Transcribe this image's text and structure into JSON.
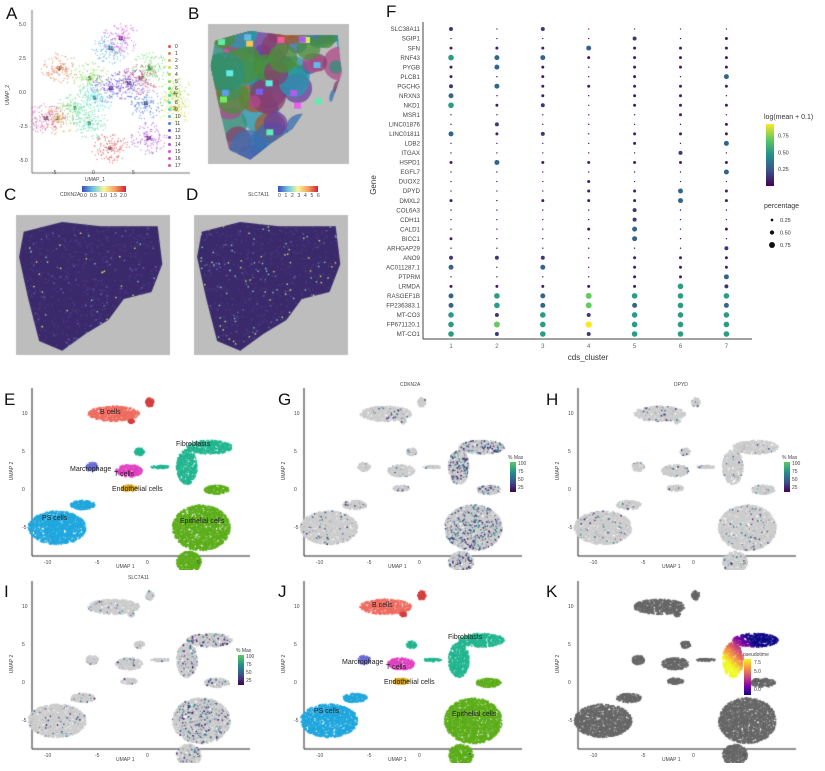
{
  "panels": {
    "A": "A",
    "B": "B",
    "C": "C",
    "D": "D",
    "E": "E",
    "F": "F",
    "G": "G",
    "H": "H",
    "I": "I",
    "J": "J",
    "K": "K"
  },
  "panelA": {
    "xlabel": "UMAP_1",
    "ylabel": "UMAP_2",
    "xticks": [
      "-5",
      "0",
      "5"
    ],
    "yticks": [
      "5.0",
      "2.5",
      "0.0",
      "-2.5",
      "-5.0"
    ],
    "clusters": [
      "0",
      "1",
      "2",
      "3",
      "4",
      "5",
      "6",
      "7",
      "8",
      "9",
      "10",
      "11",
      "12",
      "13",
      "14",
      "15",
      "16",
      "17"
    ]
  },
  "panelC": {
    "gene": "CDKN2A",
    "ticks": [
      "0.0",
      "0.5",
      "1.0",
      "1.5",
      "2.0"
    ]
  },
  "panelD": {
    "gene": "SLC7A11",
    "ticks": [
      "0",
      "1",
      "2",
      "3",
      "4",
      "5",
      "6"
    ]
  },
  "umap": {
    "xlabel": "UMAP 1",
    "ylabel": "UMAP 2",
    "xticks": [
      "-10",
      "-5",
      "0",
      "5"
    ],
    "yticks": [
      "10",
      "5",
      "0",
      "-5"
    ]
  },
  "cell_types": {
    "b": "B cells",
    "fib": "Fibroblasts",
    "mac": "Marcrophage",
    "t": "T cells",
    "endo": "Endothelial cells",
    "ps": "PS cells",
    "epi": "Epithelial cells"
  },
  "feature": {
    "G": "CDKN2A",
    "H": "DPYD",
    "I": "SLC7A11",
    "legend_title": "% Max",
    "ticks": [
      "100",
      "75",
      "50",
      "25"
    ]
  },
  "pseudotime": {
    "title": "pseudotime",
    "ticks": [
      "7.5",
      "5.0",
      "2.5",
      "0.0"
    ]
  },
  "colors": {
    "viridis": [
      "#440154",
      "#3b528b",
      "#21918c",
      "#5ec962",
      "#fde725"
    ],
    "plasma": [
      "#0d0887",
      "#7e03a8",
      "#cc4778",
      "#f89540",
      "#f0f921"
    ],
    "grey": "#cccccc"
  },
  "chart_data": {
    "type": "dot",
    "xlabel": "cds_cluster",
    "ylabel": "Gene",
    "clusters": [
      "1",
      "2",
      "3",
      "4",
      "5",
      "6",
      "7"
    ],
    "genes": [
      "SLC38A11",
      "SGIP1",
      "SFN",
      "RNF43",
      "PYGB",
      "PLCB1",
      "PGCHG",
      "NRXN3",
      "NKD1",
      "MSR1",
      "LINC01876",
      "LINC01811",
      "LDB2",
      "ITGAX",
      "HSPD1",
      "EGFL7",
      "DUOX2",
      "DPYD",
      "DMXL2",
      "COL6A3",
      "CDH11",
      "CALD1",
      "BICC1",
      "ARHGAP29",
      "ANO9",
      "AC011287.1",
      "PTPRM",
      "LRMDA",
      "RASGEF1B",
      "FP236383.1",
      "MT-CO3",
      "FP671120.1",
      "MT-CO1"
    ],
    "color_legend": {
      "title": "log(mean + 0.1)",
      "ticks": [
        "0.75",
        "0.50",
        "0.25"
      ],
      "range": [
        0,
        0.92
      ]
    },
    "size_legend": {
      "title": "percentage",
      "ticks": [
        "0.25",
        "0.50",
        "0.75"
      ]
    },
    "mean": [
      [
        0.15,
        0.02,
        0.15,
        0.02,
        0.02,
        0.02,
        0.02
      ],
      [
        0.02,
        0.02,
        0.02,
        0.02,
        0.15,
        0.02,
        0.08
      ],
      [
        0.08,
        0.08,
        0.08,
        0.3,
        0.08,
        0.08,
        0.08
      ],
      [
        0.5,
        0.3,
        0.3,
        0.08,
        0.08,
        0.08,
        0.08
      ],
      [
        0.08,
        0.3,
        0.08,
        0.02,
        0.08,
        0.08,
        0.08
      ],
      [
        0.08,
        0.02,
        0.08,
        0.02,
        0.08,
        0.02,
        0.3
      ],
      [
        0.15,
        0.3,
        0.08,
        0.08,
        0.08,
        0.08,
        0.08
      ],
      [
        0.3,
        0.02,
        0.08,
        0.02,
        0.08,
        0.08,
        0.02
      ],
      [
        0.5,
        0.08,
        0.15,
        0.02,
        0.08,
        0.08,
        0.08
      ],
      [
        0.02,
        0.02,
        0.02,
        0.02,
        0.02,
        0.08,
        0.02
      ],
      [
        0.02,
        0.15,
        0.02,
        0.02,
        0.02,
        0.02,
        0.08
      ],
      [
        0.3,
        0.08,
        0.15,
        0.02,
        0.08,
        0.08,
        0.08
      ],
      [
        0.02,
        0.02,
        0.02,
        0.02,
        0.08,
        0.02,
        0.3
      ],
      [
        0.02,
        0.02,
        0.02,
        0.02,
        0.02,
        0.15,
        0.02
      ],
      [
        0.08,
        0.3,
        0.08,
        0.08,
        0.08,
        0.08,
        0.08
      ],
      [
        0.02,
        0.02,
        0.02,
        0.02,
        0.02,
        0.02,
        0.3
      ],
      [
        0.02,
        0.02,
        0.02,
        0.08,
        0.02,
        0.02,
        0.02
      ],
      [
        0.02,
        0.02,
        0.02,
        0.08,
        0.08,
        0.3,
        0.08
      ],
      [
        0.08,
        0.02,
        0.08,
        0.08,
        0.08,
        0.3,
        0.08
      ],
      [
        0.02,
        0.02,
        0.02,
        0.02,
        0.15,
        0.02,
        0.02
      ],
      [
        0.02,
        0.02,
        0.02,
        0.02,
        0.15,
        0.02,
        0.02
      ],
      [
        0.02,
        0.02,
        0.02,
        0.08,
        0.3,
        0.02,
        0.08
      ],
      [
        0.08,
        0.02,
        0.02,
        0.02,
        0.3,
        0.02,
        0.02
      ],
      [
        0.02,
        0.02,
        0.02,
        0.02,
        0.02,
        0.02,
        0.15
      ],
      [
        0.15,
        0.15,
        0.15,
        0.02,
        0.08,
        0.08,
        0.08
      ],
      [
        0.3,
        0.02,
        0.3,
        0.02,
        0.08,
        0.08,
        0.08
      ],
      [
        0.02,
        0.02,
        0.02,
        0.02,
        0.08,
        0.08,
        0.3
      ],
      [
        0.08,
        0.08,
        0.08,
        0.08,
        0.08,
        0.5,
        0.15
      ],
      [
        0.3,
        0.5,
        0.3,
        0.7,
        0.5,
        0.5,
        0.5
      ],
      [
        0.3,
        0.5,
        0.3,
        0.7,
        0.3,
        0.5,
        0.3
      ],
      [
        0.5,
        0.15,
        0.5,
        0.15,
        0.5,
        0.5,
        0.5
      ],
      [
        0.5,
        0.7,
        0.5,
        0.92,
        0.5,
        0.5,
        0.5
      ],
      [
        0.5,
        0.15,
        0.5,
        0.15,
        0.5,
        0.5,
        0.5
      ]
    ],
    "percentage": [
      [
        0.45,
        0.05,
        0.45,
        0.05,
        0.05,
        0.05,
        0.05
      ],
      [
        0.05,
        0.05,
        0.05,
        0.05,
        0.45,
        0.05,
        0.3
      ],
      [
        0.3,
        0.3,
        0.3,
        0.6,
        0.3,
        0.3,
        0.3
      ],
      [
        0.7,
        0.6,
        0.6,
        0.3,
        0.3,
        0.3,
        0.3
      ],
      [
        0.3,
        0.6,
        0.3,
        0.05,
        0.3,
        0.3,
        0.3
      ],
      [
        0.3,
        0.05,
        0.3,
        0.05,
        0.3,
        0.05,
        0.6
      ],
      [
        0.45,
        0.6,
        0.3,
        0.3,
        0.3,
        0.3,
        0.3
      ],
      [
        0.6,
        0.05,
        0.3,
        0.05,
        0.3,
        0.3,
        0.05
      ],
      [
        0.7,
        0.3,
        0.45,
        0.05,
        0.3,
        0.3,
        0.3
      ],
      [
        0.05,
        0.05,
        0.05,
        0.05,
        0.05,
        0.3,
        0.05
      ],
      [
        0.05,
        0.45,
        0.05,
        0.05,
        0.05,
        0.05,
        0.3
      ],
      [
        0.6,
        0.3,
        0.45,
        0.05,
        0.3,
        0.3,
        0.3
      ],
      [
        0.05,
        0.05,
        0.05,
        0.05,
        0.3,
        0.05,
        0.6
      ],
      [
        0.05,
        0.05,
        0.05,
        0.05,
        0.05,
        0.45,
        0.05
      ],
      [
        0.3,
        0.6,
        0.3,
        0.3,
        0.3,
        0.3,
        0.3
      ],
      [
        0.05,
        0.05,
        0.05,
        0.05,
        0.05,
        0.05,
        0.6
      ],
      [
        0.05,
        0.05,
        0.05,
        0.3,
        0.05,
        0.05,
        0.05
      ],
      [
        0.05,
        0.05,
        0.05,
        0.3,
        0.3,
        0.6,
        0.3
      ],
      [
        0.3,
        0.05,
        0.3,
        0.3,
        0.3,
        0.6,
        0.3
      ],
      [
        0.05,
        0.05,
        0.05,
        0.05,
        0.45,
        0.05,
        0.05
      ],
      [
        0.05,
        0.05,
        0.05,
        0.05,
        0.45,
        0.05,
        0.05
      ],
      [
        0.05,
        0.05,
        0.05,
        0.3,
        0.6,
        0.05,
        0.3
      ],
      [
        0.3,
        0.05,
        0.05,
        0.05,
        0.6,
        0.05,
        0.05
      ],
      [
        0.05,
        0.05,
        0.05,
        0.05,
        0.05,
        0.05,
        0.45
      ],
      [
        0.45,
        0.45,
        0.45,
        0.05,
        0.3,
        0.3,
        0.3
      ],
      [
        0.6,
        0.05,
        0.6,
        0.05,
        0.3,
        0.3,
        0.3
      ],
      [
        0.05,
        0.05,
        0.05,
        0.05,
        0.3,
        0.3,
        0.6
      ],
      [
        0.3,
        0.3,
        0.3,
        0.3,
        0.3,
        0.7,
        0.45
      ],
      [
        0.6,
        0.7,
        0.6,
        0.75,
        0.7,
        0.7,
        0.7
      ],
      [
        0.6,
        0.7,
        0.6,
        0.75,
        0.6,
        0.7,
        0.6
      ],
      [
        0.7,
        0.45,
        0.7,
        0.45,
        0.7,
        0.7,
        0.7
      ],
      [
        0.7,
        0.75,
        0.7,
        0.8,
        0.7,
        0.7,
        0.7
      ],
      [
        0.7,
        0.45,
        0.7,
        0.45,
        0.7,
        0.7,
        0.7
      ]
    ]
  }
}
